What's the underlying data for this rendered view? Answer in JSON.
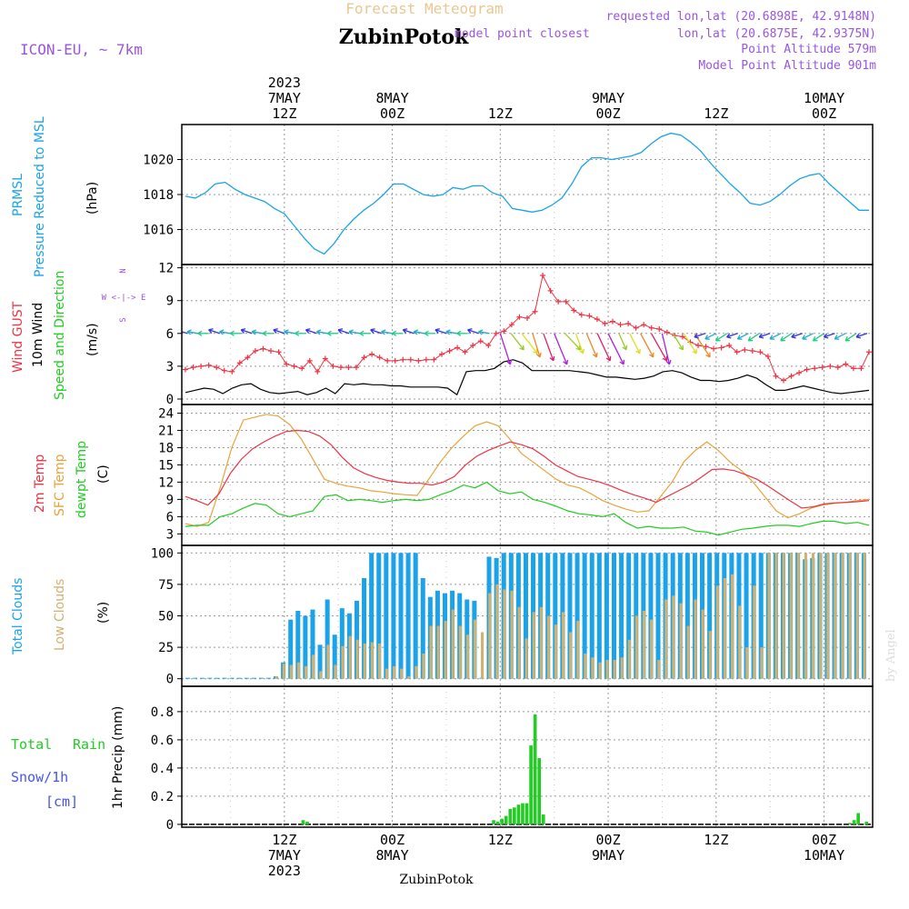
{
  "header": {
    "title": "Forecast Meteogram",
    "location": "ZubinPotok",
    "model": "ICON-EU, ~ 7km",
    "requested": "requested lon,lat (20.6898E, 42.9148N)",
    "closest_prefix": "model point closest",
    "closest": "lon,lat (20.6875E, 42.9375N)",
    "point_alt": "Point Altitude 579m",
    "model_alt": "Model Point Altitude 901m",
    "footer": "ZubinPotok",
    "watermark": "by Angel"
  },
  "colors": {
    "pressure": "#1aa3e8",
    "gust": "#ee3344",
    "wind10": "#000000",
    "dir": "#22cc22",
    "temp": "#ee3344",
    "sfc": "#e8a33a",
    "dew": "#22cc22",
    "total_clouds": "#1aa3e8",
    "low_clouds": "#d2b06e",
    "rain": "#22cc22",
    "snow": "#4455ee",
    "label": "#9955dd",
    "grid": "#999999",
    "title": "#e8c890"
  },
  "panel_labels": {
    "pressure": [
      "PRMSL",
      "Pressure Reduced to MSL",
      "(hPa)"
    ],
    "wind": [
      "Wind GUST",
      "10m Wind",
      "Speed and Direction",
      "(m/s)"
    ],
    "compass": [
      "N",
      "W <-|-> E",
      "S"
    ],
    "temp": [
      "2m Temp",
      "SFC Temp",
      "dewpt Temp",
      "(C)"
    ],
    "clouds": [
      "Total Clouds",
      "Low Clouds",
      "(%)"
    ],
    "precip": [
      "Total",
      "Rain",
      "Snow/1h",
      "[cm]",
      "1hr Precip (mm)"
    ]
  },
  "chart_data": {
    "type": "line",
    "x_hours": [
      0,
      64
    ],
    "time_ticks_top": [
      {
        "h": 9.5,
        "lines": [
          "2023",
          "7MAY",
          "12Z"
        ]
      },
      {
        "h": 19.5,
        "lines": [
          "8MAY",
          "00Z"
        ]
      },
      {
        "h": 29.5,
        "lines": [
          "12Z"
        ]
      },
      {
        "h": 39.5,
        "lines": [
          "9MAY",
          "00Z"
        ]
      },
      {
        "h": 49.5,
        "lines": [
          "12Z"
        ]
      },
      {
        "h": 59.5,
        "lines": [
          "10MAY",
          "00Z"
        ]
      }
    ],
    "time_ticks_bottom": [
      {
        "h": 9.5,
        "lines": [
          "12Z",
          "7MAY",
          "2023"
        ]
      },
      {
        "h": 19.5,
        "lines": [
          "00Z",
          "8MAY"
        ]
      },
      {
        "h": 29.5,
        "lines": [
          "12Z"
        ]
      },
      {
        "h": 39.5,
        "lines": [
          "00Z",
          "9MAY"
        ]
      },
      {
        "h": 49.5,
        "lines": [
          "12Z"
        ]
      },
      {
        "h": 59.5,
        "lines": [
          "00Z",
          "10MAY"
        ]
      }
    ],
    "pressure": {
      "title": "PRMSL Pressure Reduced to MSL",
      "unit": "hPa",
      "ylim": [
        1014,
        1022
      ],
      "yticks": [
        1016,
        1018,
        1020
      ],
      "values": [
        1017.9,
        1017.8,
        1018.1,
        1018.6,
        1018.7,
        1018.3,
        1018.0,
        1017.8,
        1017.6,
        1017.2,
        1016.9,
        1016.2,
        1015.5,
        1014.9,
        1014.6,
        1015.2,
        1016.0,
        1016.6,
        1017.1,
        1017.5,
        1018.0,
        1018.6,
        1018.6,
        1018.3,
        1018.0,
        1017.9,
        1018.0,
        1018.4,
        1018.3,
        1018.5,
        1018.5,
        1018.1,
        1017.9,
        1017.2,
        1017.1,
        1017.0,
        1017.1,
        1017.4,
        1017.8,
        1018.6,
        1019.6,
        1020.1,
        1020.1,
        1020.0,
        1020.1,
        1020.2,
        1020.4,
        1020.9,
        1021.3,
        1021.5,
        1021.4,
        1021.0,
        1020.5,
        1019.8,
        1019.2,
        1018.6,
        1018.1,
        1017.5,
        1017.4,
        1017.6,
        1018.0,
        1018.5,
        1018.9,
        1019.1,
        1019.2,
        1018.6,
        1018.1,
        1017.6,
        1017.1,
        1017.1
      ]
    },
    "wind": {
      "unit": "m/s",
      "ylim": [
        -0.5,
        12.3
      ],
      "yticks": [
        0,
        3,
        6,
        9,
        12
      ],
      "gust": [
        2.7,
        2.9,
        3.0,
        3.1,
        2.9,
        2.6,
        2.5,
        3.3,
        3.8,
        4.4,
        4.6,
        4.4,
        4.3,
        3.2,
        3.0,
        2.8,
        3.5,
        2.5,
        3.7,
        3.0,
        2.9,
        2.9,
        2.9,
        3.8,
        4.1,
        3.8,
        3.5,
        3.5,
        3.6,
        3.6,
        3.5,
        3.6,
        3.6,
        4.1,
        4.4,
        4.7,
        4.3,
        4.9,
        5.3,
        4.9,
        6.0,
        6.2,
        6.8,
        7.5,
        7.4,
        8.0,
        11.3,
        9.9,
        8.9,
        8.9,
        8.1,
        7.7,
        7.6,
        7.3,
        6.9,
        7.1,
        6.8,
        6.9,
        6.5,
        6.8,
        6.5,
        6.4,
        6.1,
        5.8,
        5.7,
        5.2,
        4.9,
        4.8,
        4.6,
        4.7,
        4.9,
        4.3,
        4.5,
        4.4,
        4.3,
        3.9,
        2.1,
        1.7,
        2.1,
        2.4,
        2.7,
        2.8,
        2.9,
        3.0,
        2.9,
        3.2,
        2.8,
        2.8,
        4.3
      ],
      "wind10": [
        0.6,
        0.8,
        1.0,
        0.9,
        0.5,
        1.0,
        1.3,
        1.4,
        0.9,
        0.6,
        0.5,
        0.6,
        0.7,
        0.4,
        0.6,
        1.0,
        0.5,
        1.4,
        1.3,
        1.4,
        1.3,
        1.3,
        1.2,
        1.2,
        1.1,
        1.1,
        1.1,
        1.1,
        1.0,
        0.4,
        2.5,
        2.6,
        2.6,
        2.8,
        3.4,
        3.6,
        3.3,
        2.6,
        2.6,
        2.6,
        2.6,
        2.6,
        2.5,
        2.4,
        2.2,
        2.0,
        2.0,
        1.9,
        1.8,
        1.9,
        2.1,
        2.5,
        2.6,
        2.4,
        2.0,
        1.7,
        1.7,
        1.6,
        1.7,
        1.9,
        2.2,
        1.9,
        1.3,
        0.8,
        0.8,
        1.0,
        1.2,
        1.0,
        0.8,
        0.6,
        0.5,
        0.6,
        0.7,
        0.8
      ],
      "direction_colors": [
        "#3333dd",
        "#22aacc",
        "#22cc88",
        "#99cc22",
        "#dddd22",
        "#ee8822",
        "#dd2266",
        "#aa22dd"
      ]
    },
    "temperature": {
      "unit": "C",
      "ylim": [
        1,
        25.5
      ],
      "yticks": [
        3,
        6,
        9,
        12,
        15,
        18,
        21,
        24
      ],
      "t2m": [
        9.5,
        8.8,
        8.0,
        10.0,
        13.5,
        16.0,
        17.8,
        19.0,
        20.0,
        20.8,
        21.0,
        20.8,
        20.0,
        18.5,
        16.3,
        14.5,
        13.5,
        12.8,
        12.3,
        12.0,
        11.8,
        11.8,
        11.5,
        12.0,
        13.0,
        15.0,
        16.5,
        17.5,
        18.3,
        19.0,
        18.5,
        17.8,
        16.5,
        15.0,
        14.0,
        13.0,
        12.5,
        12.0,
        11.3,
        10.5,
        9.8,
        9.2,
        8.5,
        9.5,
        10.5,
        11.5,
        12.8,
        14.2,
        14.3,
        14.0,
        13.3,
        12.5,
        11.3,
        10.0,
        8.7,
        7.5,
        7.7,
        8.2,
        8.4,
        8.5,
        8.6,
        8.8
      ],
      "sfc": [
        4.8,
        4.3,
        5.0,
        11.0,
        18.0,
        22.8,
        23.3,
        23.8,
        23.5,
        22.0,
        19.5,
        16.0,
        12.5,
        11.8,
        11.3,
        11.0,
        10.5,
        10.3,
        10.0,
        9.8,
        9.7,
        12.5,
        15.5,
        18.0,
        20.0,
        21.8,
        22.5,
        21.8,
        19.5,
        17.0,
        15.5,
        14.0,
        12.5,
        11.5,
        11.0,
        10.0,
        8.8,
        8.0,
        7.3,
        6.8,
        7.0,
        9.5,
        12.0,
        15.5,
        17.5,
        19.0,
        17.5,
        15.5,
        14.0,
        12.0,
        9.5,
        7.0,
        5.8,
        6.5,
        7.5,
        8.0,
        8.3,
        8.5,
        8.8,
        9.0
      ],
      "dew": [
        4.3,
        4.5,
        4.5,
        6.0,
        6.5,
        7.5,
        8.3,
        8.0,
        6.5,
        6.0,
        6.5,
        7.0,
        9.5,
        9.8,
        8.8,
        9.0,
        8.8,
        8.5,
        8.8,
        9.0,
        8.8,
        9.0,
        9.8,
        10.5,
        11.5,
        11.0,
        12.0,
        10.5,
        10.0,
        10.3,
        9.0,
        8.5,
        7.8,
        7.0,
        6.5,
        6.3,
        6.0,
        6.5,
        5.0,
        4.0,
        4.3,
        4.0,
        4.0,
        4.2,
        3.5,
        3.3,
        2.8,
        3.3,
        3.8,
        4.0,
        4.3,
        4.5,
        4.5,
        4.3,
        4.8,
        5.2,
        5.2,
        4.8,
        5.0,
        4.5
      ]
    },
    "clouds": {
      "unit": "%",
      "ylim": [
        -6,
        106
      ],
      "yticks": [
        0,
        25,
        50,
        75,
        100
      ],
      "total": [
        0,
        0,
        0,
        0,
        0,
        0,
        0,
        0,
        0,
        0,
        0,
        0,
        2,
        13,
        47,
        54,
        50,
        55,
        27,
        63,
        35,
        56,
        52,
        62,
        80,
        100,
        100,
        100,
        100,
        100,
        100,
        100,
        80,
        65,
        70,
        68,
        70,
        68,
        63,
        62,
        0,
        97,
        96,
        100,
        100,
        100,
        100,
        100,
        100,
        100,
        100,
        100,
        100,
        100,
        100,
        100,
        100,
        100,
        100,
        100,
        100,
        100,
        100,
        100,
        100,
        100,
        100,
        100,
        100,
        100,
        100,
        100,
        100,
        100,
        100,
        100,
        100,
        100,
        100,
        100,
        100,
        100,
        100,
        100,
        95,
        96,
        100,
        100,
        100,
        100,
        100,
        100,
        100
      ],
      "low": [
        0,
        0,
        0,
        0,
        0,
        0,
        0,
        0,
        0,
        0,
        0,
        0,
        2,
        12,
        11,
        13,
        10,
        19,
        6,
        27,
        11,
        26,
        34,
        31,
        28,
        29,
        28,
        8,
        10,
        8,
        2,
        10,
        20,
        42,
        42,
        46,
        55,
        42,
        35,
        47,
        37,
        68,
        75,
        71,
        70,
        57,
        32,
        53,
        57,
        50,
        43,
        53,
        37,
        46,
        20,
        17,
        13,
        15,
        15,
        17,
        31,
        50,
        54,
        47,
        15,
        63,
        66,
        60,
        42,
        63,
        55,
        38,
        74,
        80,
        83,
        58,
        25,
        74,
        25,
        100,
        100,
        100,
        100,
        100,
        100,
        100,
        100,
        100,
        100,
        100,
        100,
        100,
        100,
        100
      ]
    },
    "precip": {
      "unit": "mm",
      "ylim": [
        -0.02,
        0.98
      ],
      "yticks": [
        0,
        0.2,
        0.4,
        0.6,
        0.8
      ],
      "rain": [
        0,
        0,
        0,
        0,
        0,
        0,
        0,
        0,
        0,
        0,
        0,
        0,
        0,
        0,
        0,
        0,
        0,
        0,
        0,
        0,
        0,
        0,
        0,
        0,
        0,
        0,
        0,
        0,
        0.03,
        0.02,
        0,
        0,
        0,
        0,
        0,
        0,
        0,
        0,
        0,
        0,
        0,
        0,
        0,
        0,
        0,
        0,
        0,
        0,
        0,
        0,
        0,
        0,
        0,
        0,
        0,
        0,
        0,
        0,
        0,
        0,
        0,
        0,
        0,
        0,
        0,
        0,
        0,
        0,
        0,
        0,
        0,
        0,
        0,
        0,
        0.03,
        0.02,
        0.04,
        0.06,
        0.11,
        0.12,
        0.14,
        0.15,
        0.15,
        0.56,
        0.78,
        0.47,
        0.07,
        0,
        0,
        0,
        0,
        0,
        0,
        0,
        0,
        0,
        0,
        0,
        0,
        0,
        0,
        0,
        0,
        0,
        0,
        0,
        0,
        0,
        0,
        0,
        0,
        0,
        0,
        0,
        0,
        0,
        0,
        0,
        0,
        0,
        0,
        0,
        0,
        0,
        0,
        0,
        0,
        0,
        0,
        0,
        0,
        0,
        0,
        0,
        0,
        0,
        0,
        0,
        0,
        0,
        0,
        0,
        0,
        0,
        0,
        0,
        0,
        0,
        0,
        0,
        0,
        0,
        0,
        0,
        0,
        0,
        0,
        0,
        0,
        0,
        0.01,
        0.03,
        0.08,
        0,
        0.02
      ]
    }
  }
}
